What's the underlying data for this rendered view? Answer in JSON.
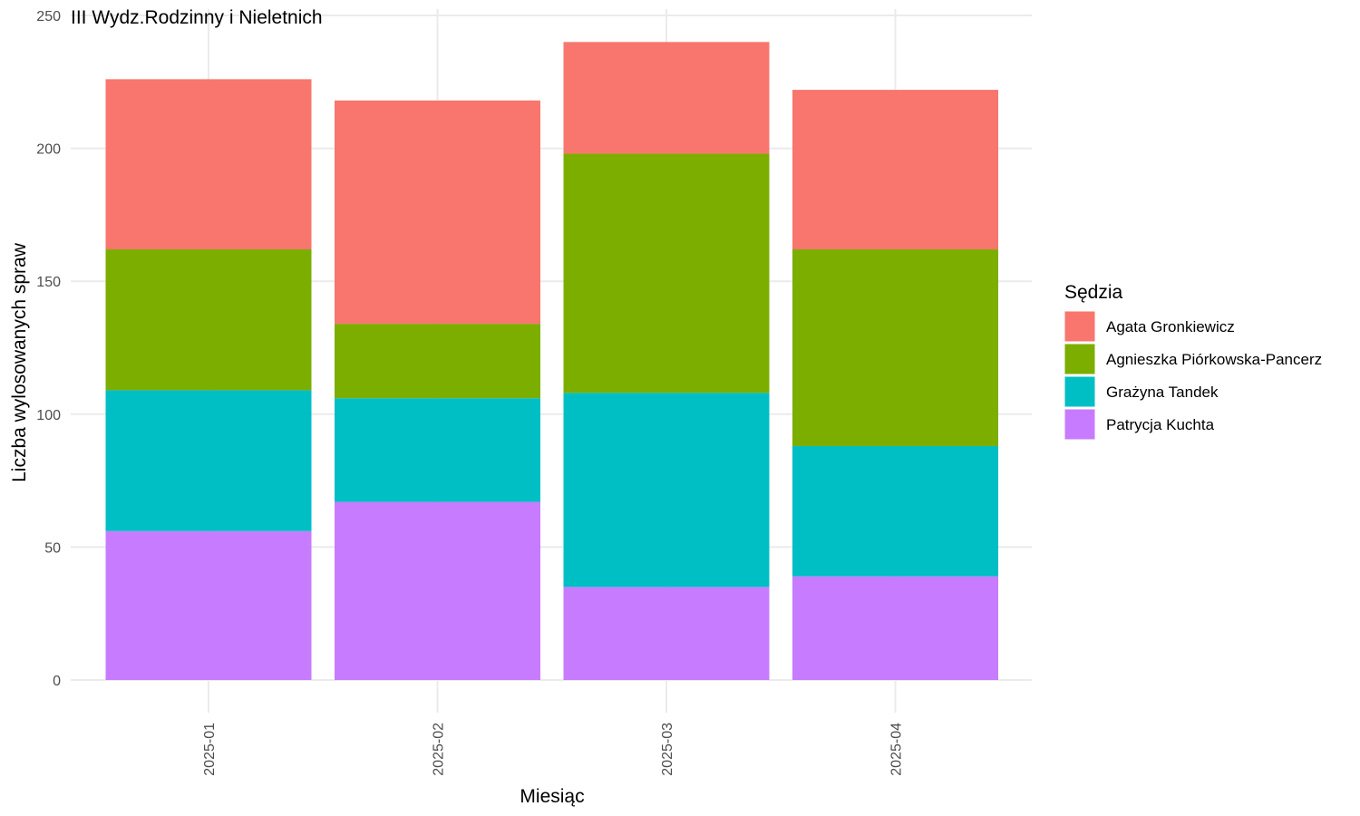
{
  "chart_data": {
    "type": "bar",
    "stacked": true,
    "title": "III Wydz.Rodzinny i Nieletnich",
    "xlabel": "Miesiąc",
    "ylabel": "Liczba wylosowanych spraw",
    "ylim": [
      0,
      250
    ],
    "yticks": [
      0,
      50,
      100,
      150,
      200,
      250
    ],
    "grid": true,
    "legend_title": "Sędzia",
    "legend_position": "right",
    "categories": [
      "2025-01",
      "2025-02",
      "2025-03",
      "2025-04"
    ],
    "series": [
      {
        "name": "Patrycja Kuchta",
        "color": "#C77CFF",
        "values": [
          56,
          67,
          35,
          39
        ]
      },
      {
        "name": "Grażyna Tandek",
        "color": "#00BFC4",
        "values": [
          53,
          39,
          73,
          49
        ]
      },
      {
        "name": "Agnieszka Piórkowska-Pancerz",
        "color": "#7CAE00",
        "values": [
          53,
          28,
          90,
          74
        ]
      },
      {
        "name": "Agata Gronkiewicz",
        "color": "#F8766D",
        "values": [
          64,
          84,
          42,
          60
        ]
      }
    ],
    "legend_order": [
      "Agata Gronkiewicz",
      "Agnieszka Piórkowska-Pancerz",
      "Grażyna Tandek",
      "Patrycja Kuchta"
    ]
  }
}
